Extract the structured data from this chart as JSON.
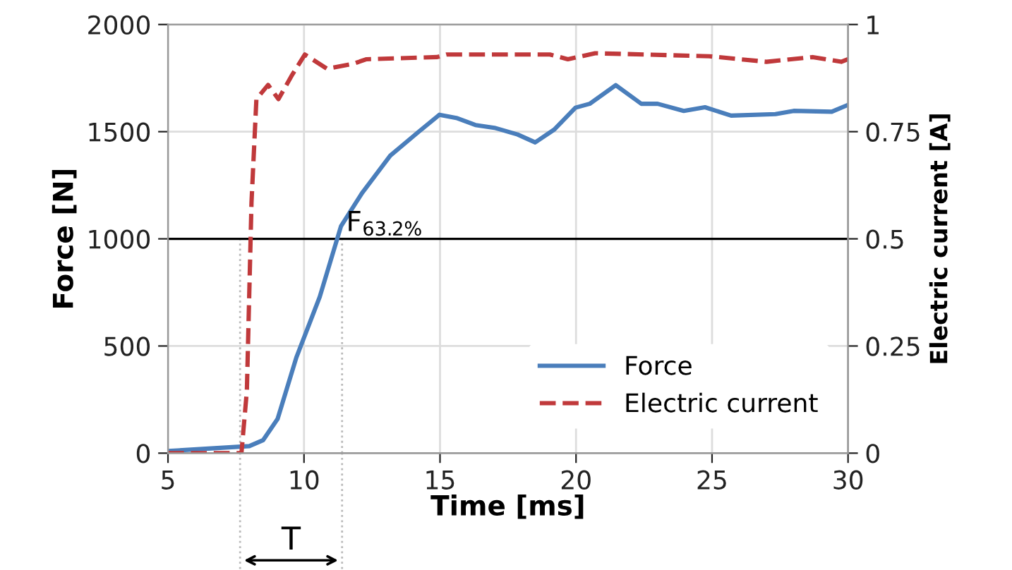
{
  "chart_data": {
    "type": "line",
    "xlabel": "Time [ms]",
    "ylabel": "Force [N]",
    "y2label": "Electric current [A]",
    "xlim": [
      5,
      30
    ],
    "xticks": [
      5,
      10,
      15,
      20,
      25,
      30
    ],
    "ylim": [
      0,
      2000
    ],
    "yticks": [
      0,
      500,
      1000,
      1500,
      2000
    ],
    "y2lim": [
      0,
      1
    ],
    "y2ticks": [
      0,
      0.25,
      0.5,
      0.75,
      1
    ],
    "grid": true,
    "legend": "bottom right",
    "series": [
      {
        "name": "Force",
        "color": "#4a7ebb",
        "line_style": "solid",
        "x": [
          5.0,
          7.99,
          8.5,
          9.03,
          9.72,
          10.58,
          11.36,
          12.13,
          13.17,
          14.2,
          14.98,
          15.6,
          16.3,
          17.0,
          17.85,
          18.5,
          19.2,
          19.98,
          20.5,
          21.46,
          22.4,
          23.0,
          23.96,
          24.74,
          25.7,
          27.33,
          28.0,
          29.4,
          30.0
        ],
        "values": [
          10,
          33,
          61,
          160,
          447,
          730,
          1059,
          1213,
          1388,
          1498,
          1579,
          1564,
          1531,
          1518,
          1487,
          1450,
          1510,
          1612,
          1630,
          1717,
          1630,
          1630,
          1597,
          1614,
          1575,
          1582,
          1597,
          1593,
          1625
        ]
      },
      {
        "name": "Electric current",
        "color": "#c0393b",
        "line_style": "dashed",
        "axis": "y2",
        "x": [
          5.0,
          7.7,
          7.9,
          8.07,
          8.25,
          8.68,
          9.06,
          9.54,
          10.03,
          10.84,
          11.79,
          12.3,
          14.9,
          15.24,
          19.04,
          19.7,
          20.7,
          24.9,
          27.0,
          28.7,
          29.75,
          30.0
        ],
        "values": [
          0,
          0,
          0.146,
          0.585,
          0.826,
          0.859,
          0.826,
          0.88,
          0.93,
          0.897,
          0.908,
          0.919,
          0.924,
          0.93,
          0.93,
          0.919,
          0.933,
          0.926,
          0.913,
          0.924,
          0.913,
          0.919
        ]
      }
    ],
    "ref_lines": [
      {
        "axis": "y",
        "value": 1000,
        "label": "F$_{63.2%}$",
        "color": "#000000",
        "line_style": "solid"
      },
      {
        "axis": "x",
        "value": 7.65,
        "label": null,
        "color": "#bbbbbb",
        "line_style": "dotted"
      },
      {
        "axis": "x",
        "value": 11.4,
        "label": null,
        "color": "#bbbbbb",
        "line_style": "dotted"
      }
    ],
    "annotations": [
      "T"
    ]
  }
}
